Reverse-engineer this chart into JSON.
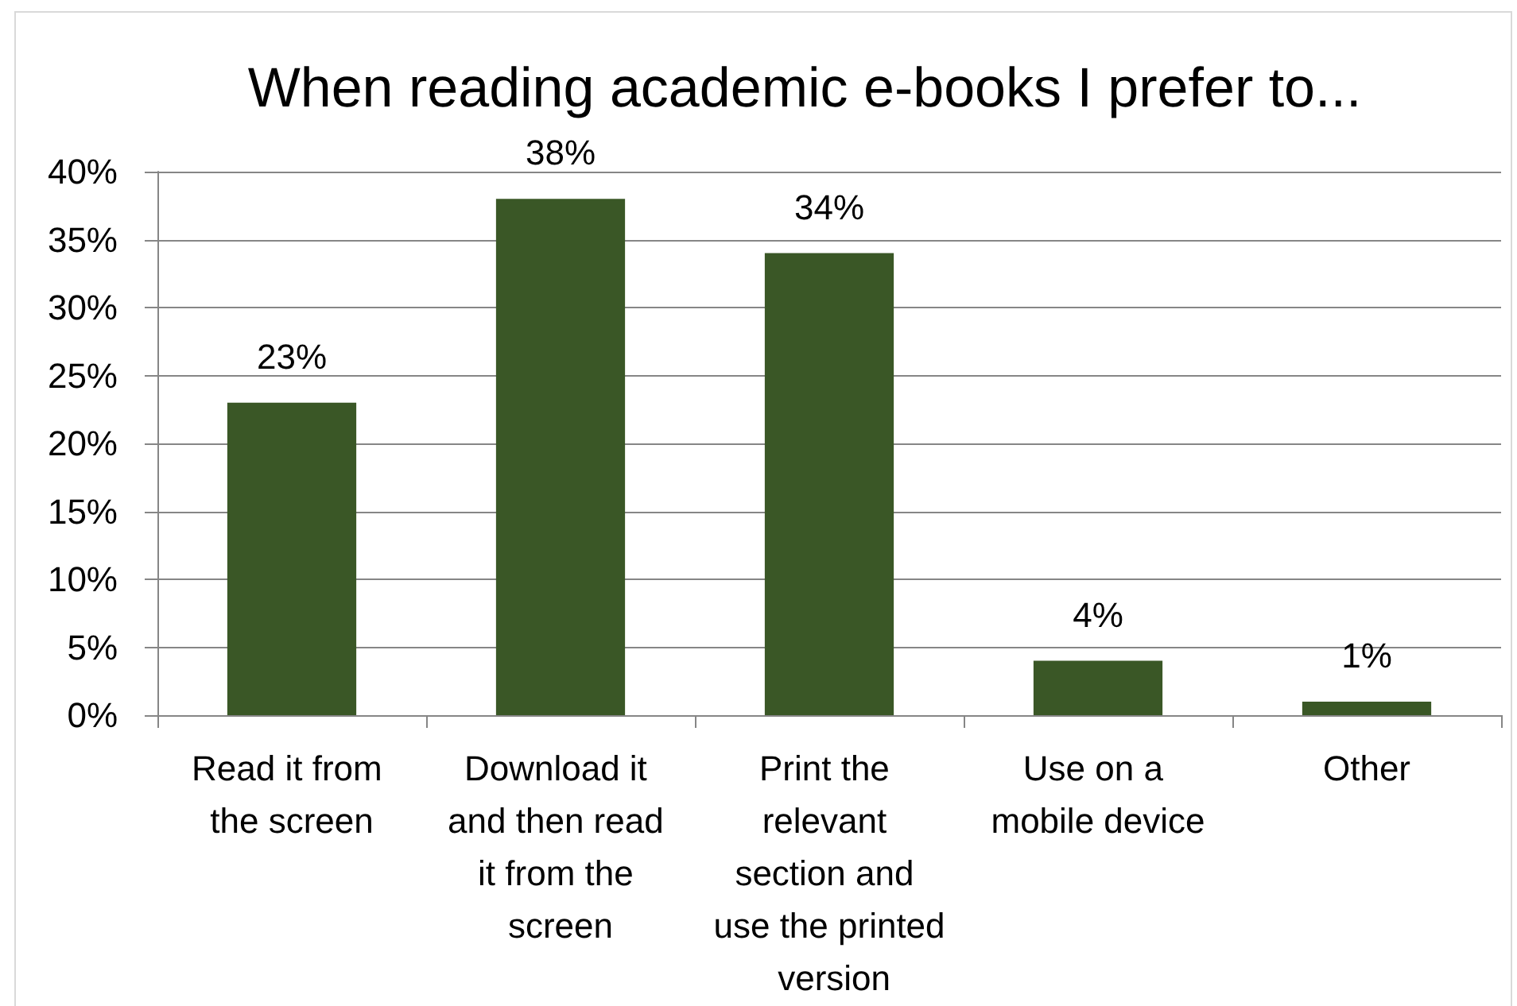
{
  "chart_data": {
    "type": "bar",
    "title": "When reading academic e-books I prefer to...",
    "categories": [
      "Read it from the screen",
      "Download it and then read it from the screen",
      "Print the relevant section and use the printed version",
      "Use on a mobile device",
      "Other"
    ],
    "values": [
      23,
      38,
      34,
      4,
      1
    ],
    "value_labels": [
      "23%",
      "38%",
      "34%",
      "4%",
      "1%"
    ],
    "color": "#3a5726",
    "ylim": [
      0,
      40
    ],
    "yticks": [
      {
        "value": 0,
        "label": "0%"
      },
      {
        "value": 5,
        "label": "5%"
      },
      {
        "value": 10,
        "label": "10%"
      },
      {
        "value": 15,
        "label": "15%"
      },
      {
        "value": 20,
        "label": "20%"
      },
      {
        "value": 25,
        "label": "25%"
      },
      {
        "value": 30,
        "label": "30%"
      },
      {
        "value": 35,
        "label": "35%"
      },
      {
        "value": 40,
        "label": "40%"
      }
    ],
    "grid": "y"
  }
}
